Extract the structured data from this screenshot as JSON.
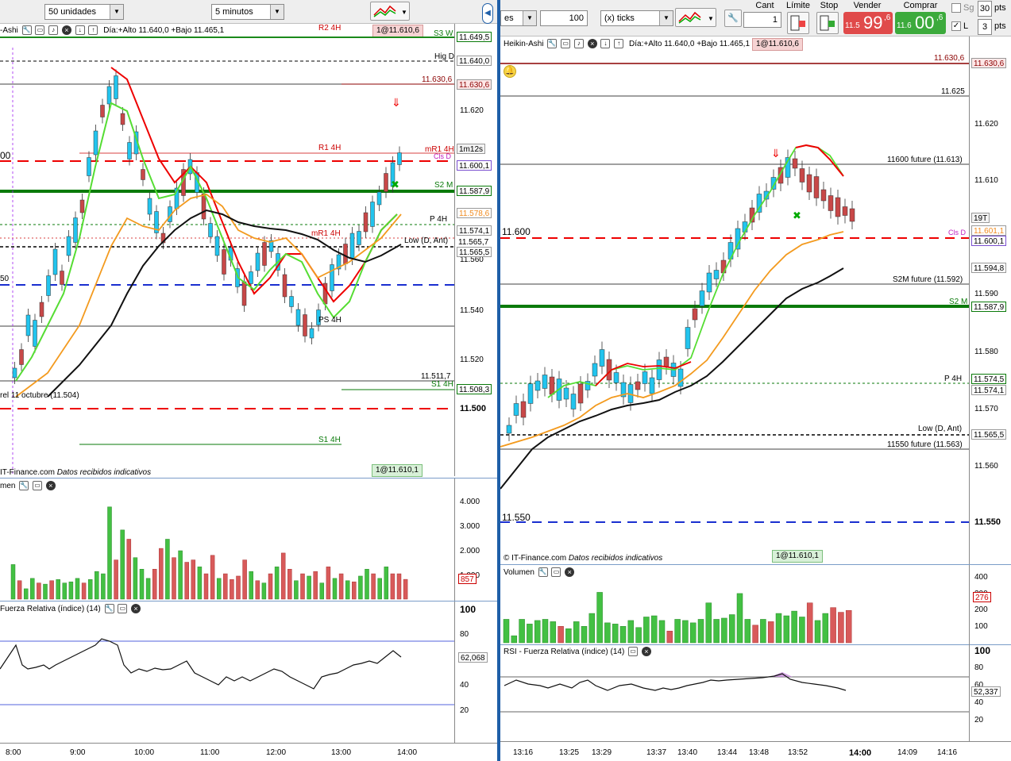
{
  "left_panel": {
    "toolbar": {
      "units_select": "50 unidades",
      "interval_select": "5 minutos"
    },
    "header": {
      "chart_type": "-Ashi",
      "day_info": "Día:+Alto 11.640,0 +Bajo 11.465,1",
      "order_label": "1@11.610,6"
    },
    "price_axis": [
      "11.620",
      "11.560",
      "11.540",
      "11.520",
      "11.500"
    ],
    "price_tags": [
      "11.649,5",
      "11.640,0",
      "11.630,6",
      "1m12s",
      "11.600,1",
      "11.587,9",
      "11.578,6",
      "11.574,1",
      "11.565,7",
      "11.565,5",
      "11.508,3"
    ],
    "line_labels": {
      "r2_4h": "R2 4H",
      "s3_w": "S3 W",
      "hig_d": "Hig D",
      "r1_4h": "R1 4H",
      "mr1_4h_a": "mR1 4H",
      "cls_d": "Cls D",
      "s2_m": "S2 M",
      "p_4h": "P 4H",
      "mr1_4h_b": "mR1 4H",
      "low_d": "Low (D, Ant)",
      "s1_4h_a": "S1 4H",
      "s1_4h_b": "S1 4H",
      "val_11511": "11.511,7",
      "val_11630": "11.630,6",
      "ciel_octubre": "rel 11 octubre (11.504)",
      "left_00": "00",
      "left_50": "50",
      "pivot_ps": "PS 4H"
    },
    "footer": {
      "source": "IT-Finance.com",
      "note": "Datos recibidos indicativos",
      "order": "1@11.610,1"
    },
    "volume": {
      "title": "men",
      "axis": [
        "4.000",
        "3.000",
        "2.000",
        "1.000"
      ],
      "last": "857",
      "bars": [
        {
          "v": 1500,
          "c": "green"
        },
        {
          "v": 800,
          "c": "red"
        },
        {
          "v": 450,
          "c": "green"
        },
        {
          "v": 900,
          "c": "green"
        },
        {
          "v": 700,
          "c": "red"
        },
        {
          "v": 650,
          "c": "green"
        },
        {
          "v": 800,
          "c": "red"
        },
        {
          "v": 850,
          "c": "green"
        },
        {
          "v": 700,
          "c": "green"
        },
        {
          "v": 750,
          "c": "green"
        },
        {
          "v": 900,
          "c": "green"
        },
        {
          "v": 700,
          "c": "red"
        },
        {
          "v": 850,
          "c": "green"
        },
        {
          "v": 1200,
          "c": "green"
        },
        {
          "v": 1100,
          "c": "green"
        },
        {
          "v": 4000,
          "c": "green"
        },
        {
          "v": 1700,
          "c": "red"
        },
        {
          "v": 3000,
          "c": "green"
        },
        {
          "v": 2600,
          "c": "red"
        },
        {
          "v": 1800,
          "c": "green"
        },
        {
          "v": 1300,
          "c": "green"
        },
        {
          "v": 900,
          "c": "green"
        },
        {
          "v": 1300,
          "c": "red"
        },
        {
          "v": 2200,
          "c": "red"
        },
        {
          "v": 2600,
          "c": "green"
        },
        {
          "v": 1800,
          "c": "red"
        },
        {
          "v": 2100,
          "c": "green"
        },
        {
          "v": 1600,
          "c": "red"
        },
        {
          "v": 1700,
          "c": "red"
        },
        {
          "v": 1400,
          "c": "green"
        },
        {
          "v": 1100,
          "c": "red"
        },
        {
          "v": 1900,
          "c": "red"
        },
        {
          "v": 900,
          "c": "green"
        },
        {
          "v": 1100,
          "c": "red"
        },
        {
          "v": 850,
          "c": "red"
        },
        {
          "v": 1000,
          "c": "red"
        },
        {
          "v": 1700,
          "c": "red"
        },
        {
          "v": 1200,
          "c": "green"
        },
        {
          "v": 800,
          "c": "red"
        },
        {
          "v": 700,
          "c": "green"
        },
        {
          "v": 1100,
          "c": "red"
        },
        {
          "v": 1400,
          "c": "green"
        },
        {
          "v": 2000,
          "c": "red"
        },
        {
          "v": 1300,
          "c": "red"
        },
        {
          "v": 800,
          "c": "green"
        },
        {
          "v": 1100,
          "c": "red"
        },
        {
          "v": 1000,
          "c": "green"
        },
        {
          "v": 1200,
          "c": "red"
        },
        {
          "v": 700,
          "c": "green"
        },
        {
          "v": 1400,
          "c": "red"
        },
        {
          "v": 900,
          "c": "green"
        },
        {
          "v": 1100,
          "c": "red"
        },
        {
          "v": 800,
          "c": "green"
        },
        {
          "v": 750,
          "c": "red"
        },
        {
          "v": 1000,
          "c": "green"
        },
        {
          "v": 1300,
          "c": "green"
        },
        {
          "v": 1100,
          "c": "red"
        },
        {
          "v": 900,
          "c": "green"
        },
        {
          "v": 1400,
          "c": "green"
        },
        {
          "v": 1100,
          "c": "red"
        },
        {
          "v": 1100,
          "c": "red"
        },
        {
          "v": 857,
          "c": "red"
        }
      ]
    },
    "rsi": {
      "title": "Fuerza Relativa (índice) (14)",
      "axis": [
        "100",
        "80",
        "60",
        "40",
        "20"
      ],
      "last": "62,068"
    },
    "time_axis": [
      "8:00",
      "9:00",
      "10:00",
      "11:00",
      "12:00",
      "13:00",
      "14:00"
    ]
  },
  "right_panel": {
    "toolbar": {
      "account_select": "es",
      "qty_value": "100",
      "ticks_select": "(x) ticks",
      "cant_label": "Cant",
      "cant_value": "1",
      "limite_label": "Límite",
      "stop_label": "Stop",
      "vender_label": "Vender",
      "vender_small": "11.5",
      "vender_big": "99",
      "vender_sup": ",6",
      "comprar_label": "Comprar",
      "comprar_small": "11.6",
      "comprar_big": "00",
      "comprar_sup": ",6",
      "sg_label": "Sg",
      "sg_value": "30",
      "pts_label": "pts",
      "l_label": "L",
      "l_value": "3",
      "pts_label2": "pts"
    },
    "header": {
      "chart_type": "Heikin-Ashi",
      "day_info": "Día:+Alto 11.640,0 +Bajo 11.465,1",
      "order_label": "1@11.610,6"
    },
    "price_axis": [
      "11.620",
      "11.610",
      "11.590",
      "11.580",
      "11.570",
      "11.560",
      "11.550"
    ],
    "price_tags": [
      "11.630,6",
      "19T",
      "11.601,1",
      "11.600,1",
      "11.594,8",
      "11.587,9",
      "11.574,5",
      "11.574,1",
      "11.565,5"
    ],
    "line_labels": {
      "r_top": "11.630,6",
      "val_11625": "11.625",
      "future_11600": "11600 future (11.613)",
      "left_11600": "11.600",
      "cls_d": "Cls D",
      "s2m_future": "S2M future (11.592)",
      "s2_m": "S2 M",
      "p_4h": "P 4H",
      "low_d": "Low (D, Ant)",
      "future_11550": "11550 future (11.563)",
      "left_11550": "11.550"
    },
    "footer": {
      "source": "© IT-Finance.com",
      "note": "Datos recibidos indicativos",
      "order": "1@11.610,1"
    },
    "volume": {
      "title": "Volumen",
      "axis": [
        "400",
        "300",
        "200",
        "100"
      ],
      "last": "276",
      "bars": [
        {
          "v": 200,
          "c": "green"
        },
        {
          "v": 60,
          "c": "green"
        },
        {
          "v": 200,
          "c": "green"
        },
        {
          "v": 160,
          "c": "green"
        },
        {
          "v": 190,
          "c": "green"
        },
        {
          "v": 200,
          "c": "green"
        },
        {
          "v": 180,
          "c": "green"
        },
        {
          "v": 140,
          "c": "red"
        },
        {
          "v": 120,
          "c": "green"
        },
        {
          "v": 180,
          "c": "green"
        },
        {
          "v": 140,
          "c": "green"
        },
        {
          "v": 250,
          "c": "green"
        },
        {
          "v": 430,
          "c": "green"
        },
        {
          "v": 170,
          "c": "green"
        },
        {
          "v": 160,
          "c": "green"
        },
        {
          "v": 140,
          "c": "green"
        },
        {
          "v": 190,
          "c": "green"
        },
        {
          "v": 130,
          "c": "green"
        },
        {
          "v": 220,
          "c": "green"
        },
        {
          "v": 230,
          "c": "green"
        },
        {
          "v": 190,
          "c": "green"
        },
        {
          "v": 100,
          "c": "red"
        },
        {
          "v": 200,
          "c": "green"
        },
        {
          "v": 190,
          "c": "green"
        },
        {
          "v": 170,
          "c": "green"
        },
        {
          "v": 200,
          "c": "green"
        },
        {
          "v": 340,
          "c": "green"
        },
        {
          "v": 200,
          "c": "green"
        },
        {
          "v": 210,
          "c": "green"
        },
        {
          "v": 240,
          "c": "green"
        },
        {
          "v": 420,
          "c": "green"
        },
        {
          "v": 200,
          "c": "green"
        },
        {
          "v": 150,
          "c": "red"
        },
        {
          "v": 200,
          "c": "green"
        },
        {
          "v": 180,
          "c": "red"
        },
        {
          "v": 250,
          "c": "green"
        },
        {
          "v": 230,
          "c": "green"
        },
        {
          "v": 270,
          "c": "green"
        },
        {
          "v": 220,
          "c": "green"
        },
        {
          "v": 340,
          "c": "red"
        },
        {
          "v": 190,
          "c": "green"
        },
        {
          "v": 250,
          "c": "green"
        },
        {
          "v": 300,
          "c": "red"
        },
        {
          "v": 260,
          "c": "red"
        },
        {
          "v": 276,
          "c": "red"
        }
      ]
    },
    "rsi": {
      "title": "RSI - Fuerza Relativa (índice) (14)",
      "axis": [
        "100",
        "80",
        "60",
        "40",
        "20"
      ],
      "last": "52,337"
    },
    "time_axis": [
      "13:16",
      "13:25",
      "13:29",
      "13:37",
      "13:40",
      "13:44",
      "13:48",
      "13:52",
      "14:00",
      "14:09",
      "14:16"
    ]
  }
}
